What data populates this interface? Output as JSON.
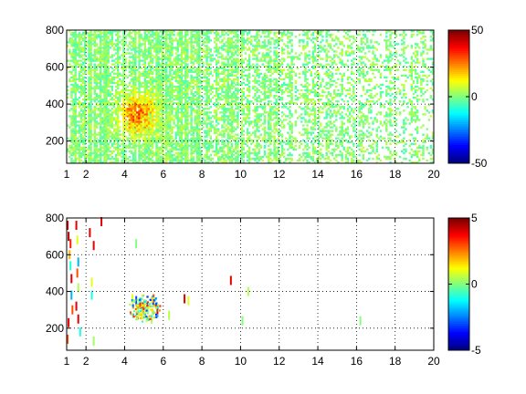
{
  "chart_data": [
    {
      "type": "heatmap",
      "title": "",
      "xlabel": "",
      "ylabel": "",
      "xlim": [
        1,
        20
      ],
      "ylim": [
        80,
        800
      ],
      "x_ticks": [
        1,
        2,
        4,
        6,
        8,
        10,
        12,
        14,
        16,
        18,
        20
      ],
      "y_ticks": [
        200,
        400,
        600,
        800
      ],
      "grid": true,
      "colormap": "jet",
      "colorbar": {
        "range": [
          -50,
          50
        ],
        "ticks": [
          -50,
          0,
          50
        ]
      },
      "background": "#ffffff",
      "structure": {
        "x_step": 0.1,
        "y_step": 10,
        "coverage": "dense across the full x range, sparser toward higher x",
        "typical_value": 0,
        "hotspot": {
          "x": 4.6,
          "y": 340,
          "peak_value": 35
        }
      }
    },
    {
      "type": "heatmap",
      "title": "",
      "xlabel": "",
      "ylabel": "",
      "xlim": [
        1,
        20
      ],
      "ylim": [
        80,
        800
      ],
      "x_ticks": [
        1,
        2,
        4,
        6,
        8,
        10,
        12,
        14,
        16,
        18,
        20
      ],
      "y_ticks": [
        200,
        400,
        600,
        800
      ],
      "grid": true,
      "colormap": "jet",
      "colorbar": {
        "range": [
          -5,
          5
        ],
        "ticks": [
          -5,
          0,
          5
        ]
      },
      "background": "#ffffff",
      "structure": {
        "coverage": "sparse",
        "points": [
          {
            "x": 1.05,
            "y": 760,
            "v": 4
          },
          {
            "x": 1.1,
            "y": 700,
            "v": 4.5
          },
          {
            "x": 1.2,
            "y": 660,
            "v": 3.5
          },
          {
            "x": 1.15,
            "y": 600,
            "v": 2
          },
          {
            "x": 1.2,
            "y": 540,
            "v": -1
          },
          {
            "x": 1.25,
            "y": 470,
            "v": 4
          },
          {
            "x": 1.25,
            "y": 380,
            "v": -2
          },
          {
            "x": 1.3,
            "y": 300,
            "v": 3
          },
          {
            "x": 1.1,
            "y": 230,
            "v": 4
          },
          {
            "x": 1.05,
            "y": 140,
            "v": 3
          },
          {
            "x": 1.5,
            "y": 760,
            "v": 4
          },
          {
            "x": 1.55,
            "y": 680,
            "v": 1
          },
          {
            "x": 1.6,
            "y": 560,
            "v": -2
          },
          {
            "x": 1.55,
            "y": 500,
            "v": 3
          },
          {
            "x": 1.6,
            "y": 420,
            "v": 0.5
          },
          {
            "x": 1.5,
            "y": 320,
            "v": 4
          },
          {
            "x": 1.6,
            "y": 250,
            "v": 4
          },
          {
            "x": 1.7,
            "y": 180,
            "v": -1
          },
          {
            "x": 2.2,
            "y": 720,
            "v": 4
          },
          {
            "x": 2.4,
            "y": 650,
            "v": 4
          },
          {
            "x": 2.3,
            "y": 450,
            "v": 1
          },
          {
            "x": 2.3,
            "y": 380,
            "v": -1
          },
          {
            "x": 2.4,
            "y": 130,
            "v": 0.3
          },
          {
            "x": 2.8,
            "y": 780,
            "v": 4
          },
          {
            "x": 4.6,
            "y": 660,
            "v": 0
          },
          {
            "x": 4.4,
            "y": 360,
            "v": 1
          },
          {
            "x": 4.6,
            "y": 350,
            "v": -3
          },
          {
            "x": 4.8,
            "y": 340,
            "v": 4
          },
          {
            "x": 5.0,
            "y": 330,
            "v": 2
          },
          {
            "x": 4.7,
            "y": 310,
            "v": -1
          },
          {
            "x": 5.2,
            "y": 300,
            "v": 0
          },
          {
            "x": 5.5,
            "y": 360,
            "v": 3
          },
          {
            "x": 4.9,
            "y": 280,
            "v": 1.5
          },
          {
            "x": 5.4,
            "y": 250,
            "v": 0.5
          },
          {
            "x": 5.7,
            "y": 300,
            "v": 4
          },
          {
            "x": 7.1,
            "y": 360,
            "v": 4
          },
          {
            "x": 7.3,
            "y": 350,
            "v": 1
          },
          {
            "x": 6.3,
            "y": 270,
            "v": 0.5
          },
          {
            "x": 9.5,
            "y": 460,
            "v": 4
          },
          {
            "x": 10.1,
            "y": 240,
            "v": 0
          },
          {
            "x": 10.4,
            "y": 400,
            "v": 0.5
          },
          {
            "x": 16.2,
            "y": 240,
            "v": 0
          }
        ],
        "cluster": {
          "x_range": [
            4.2,
            5.8
          ],
          "y_range": [
            240,
            390
          ]
        }
      }
    }
  ]
}
